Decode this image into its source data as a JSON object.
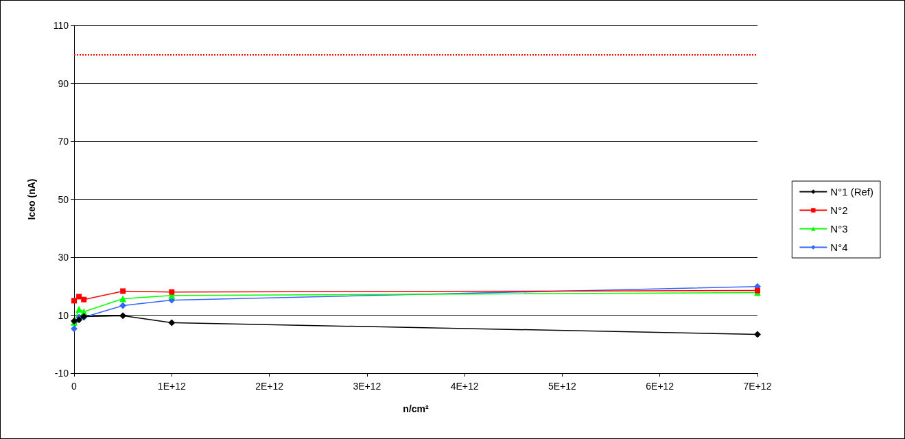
{
  "chart_data": {
    "type": "line",
    "xlabel": "n/cm²",
    "ylabel": "Iceo (nA)",
    "x": [
      0,
      50000000000,
      100000000000,
      500000000000,
      1000000000000,
      7000000000000
    ],
    "series": [
      {
        "name": "N°1 (Ref)",
        "color": "#000000",
        "marker": "diamond",
        "values": [
          8,
          8.4,
          9.5,
          9.8,
          7.4,
          3.4
        ]
      },
      {
        "name": "N°2",
        "color": "#ff0000",
        "marker": "square",
        "values": [
          15,
          16.4,
          15.4,
          18.3,
          18,
          18.5
        ]
      },
      {
        "name": "N°3",
        "color": "#00ff00",
        "marker": "triangle",
        "values": [
          7.6,
          12.1,
          11.2,
          15.7,
          16.8,
          17.8
        ]
      },
      {
        "name": "N°4",
        "color": "#3366ff",
        "marker": "diamond",
        "values": [
          5.3,
          9.3,
          9.3,
          13.3,
          15.2,
          19.9
        ]
      }
    ],
    "xlim": [
      0,
      7000000000000
    ],
    "xticks": [
      0,
      {
        "value": 1000000000000,
        "label": "1E+12"
      },
      {
        "value": 2000000000000,
        "label": "2E+12"
      },
      {
        "value": 3000000000000,
        "label": "3E+12"
      },
      {
        "value": 4000000000000,
        "label": "4E+12"
      },
      {
        "value": 5000000000000,
        "label": "5E+12"
      },
      {
        "value": 6000000000000,
        "label": "6E+12"
      },
      {
        "value": 7000000000000,
        "label": "7E+12"
      }
    ],
    "ylim": [
      -10,
      110
    ],
    "yticks": [
      -10,
      10,
      30,
      50,
      70,
      90,
      110
    ],
    "ref_lines": [
      {
        "axis": "y",
        "value": 100,
        "label": null,
        "color": "#ff0000",
        "line_style": "dotted"
      }
    ],
    "grid": "y",
    "legend": "right"
  }
}
